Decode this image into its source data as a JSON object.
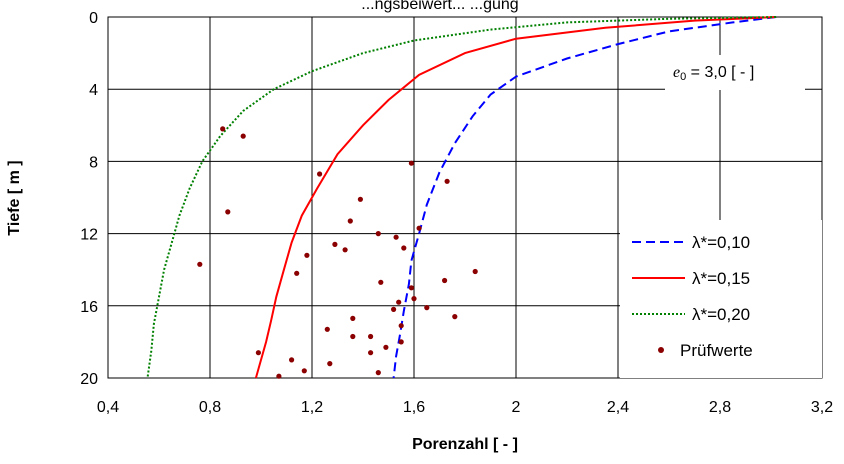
{
  "chart_data": {
    "type": "line",
    "title_partial": "...ngsbeiwert... ...gung",
    "xlabel": "Porenzahl  [ - ]",
    "ylabel": "Tiefe  [ m ]",
    "xlim": [
      0.4,
      3.2
    ],
    "ylim": [
      0,
      20
    ],
    "y_inverted": true,
    "grid": true,
    "x_ticks": [
      "0,4",
      "0,8",
      "1,2",
      "1,6",
      "2",
      "2,4",
      "2,8",
      "3,2"
    ],
    "y_ticks": [
      "0",
      "4",
      "8",
      "12",
      "16",
      "20"
    ],
    "annotation": {
      "e_symbol": "e",
      "e_subscript": "0",
      "text": " = 3,0 [ - ]"
    },
    "legend_position": "right",
    "series": [
      {
        "name": "λ*=0,10",
        "color": "#0000ff",
        "style": "dashed",
        "points": [
          [
            3.02,
            0
          ],
          [
            2.85,
            0.3
          ],
          [
            2.6,
            0.8
          ],
          [
            2.4,
            1.5
          ],
          [
            2.2,
            2.3
          ],
          [
            2.0,
            3.3
          ],
          [
            1.9,
            4.3
          ],
          [
            1.83,
            5.5
          ],
          [
            1.76,
            7.0
          ],
          [
            1.7,
            8.6
          ],
          [
            1.65,
            10.4
          ],
          [
            1.62,
            12.0
          ],
          [
            1.59,
            13.5
          ],
          [
            1.58,
            14.8
          ],
          [
            1.56,
            16.3
          ],
          [
            1.545,
            17.6
          ],
          [
            1.53,
            18.8
          ],
          [
            1.52,
            20.0
          ]
        ]
      },
      {
        "name": "λ*=0,15",
        "color": "#ff0000",
        "style": "solid",
        "points": [
          [
            3.02,
            0
          ],
          [
            2.7,
            0.2
          ],
          [
            2.35,
            0.6
          ],
          [
            2.0,
            1.2
          ],
          [
            1.8,
            2.0
          ],
          [
            1.62,
            3.2
          ],
          [
            1.5,
            4.6
          ],
          [
            1.4,
            6.0
          ],
          [
            1.3,
            7.6
          ],
          [
            1.22,
            9.5
          ],
          [
            1.16,
            11.0
          ],
          [
            1.12,
            12.5
          ],
          [
            1.09,
            14.0
          ],
          [
            1.06,
            15.5
          ],
          [
            1.04,
            16.8
          ],
          [
            1.02,
            18.0
          ],
          [
            1.0,
            19.0
          ],
          [
            0.98,
            20.0
          ]
        ]
      },
      {
        "name": "λ*=0,20",
        "color": "#008000",
        "style": "dotted",
        "points": [
          [
            3.02,
            0
          ],
          [
            2.6,
            0.1
          ],
          [
            2.2,
            0.3
          ],
          [
            1.9,
            0.7
          ],
          [
            1.6,
            1.3
          ],
          [
            1.4,
            2.0
          ],
          [
            1.2,
            3.0
          ],
          [
            1.05,
            4.0
          ],
          [
            0.93,
            5.2
          ],
          [
            0.84,
            6.6
          ],
          [
            0.77,
            8.0
          ],
          [
            0.72,
            9.5
          ],
          [
            0.68,
            11.0
          ],
          [
            0.65,
            12.5
          ],
          [
            0.62,
            14.0
          ],
          [
            0.6,
            15.5
          ],
          [
            0.58,
            17.0
          ],
          [
            0.57,
            18.5
          ],
          [
            0.555,
            20.0
          ]
        ]
      }
    ],
    "scatter": {
      "name": "Prüfwerte",
      "color": "#8b0000",
      "points": [
        [
          0.85,
          6.2
        ],
        [
          0.93,
          6.6
        ],
        [
          1.59,
          8.1
        ],
        [
          1.23,
          8.7
        ],
        [
          1.73,
          9.1
        ],
        [
          1.39,
          10.1
        ],
        [
          0.87,
          10.8
        ],
        [
          1.35,
          11.3
        ],
        [
          1.62,
          11.7
        ],
        [
          1.46,
          12.0
        ],
        [
          1.53,
          12.2
        ],
        [
          1.29,
          12.6
        ],
        [
          1.33,
          12.9
        ],
        [
          1.56,
          12.8
        ],
        [
          1.18,
          13.2
        ],
        [
          0.76,
          13.7
        ],
        [
          1.14,
          14.2
        ],
        [
          1.84,
          14.1
        ],
        [
          1.72,
          14.6
        ],
        [
          1.47,
          14.7
        ],
        [
          1.59,
          15.0
        ],
        [
          1.6,
          15.6
        ],
        [
          1.54,
          15.8
        ],
        [
          1.52,
          16.2
        ],
        [
          1.65,
          16.1
        ],
        [
          1.36,
          16.7
        ],
        [
          1.76,
          16.6
        ],
        [
          1.55,
          17.1
        ],
        [
          1.26,
          17.3
        ],
        [
          1.43,
          17.7
        ],
        [
          1.36,
          17.7
        ],
        [
          1.55,
          18.0
        ],
        [
          1.49,
          18.3
        ],
        [
          0.99,
          18.6
        ],
        [
          1.43,
          18.6
        ],
        [
          1.12,
          19.0
        ],
        [
          1.27,
          19.2
        ],
        [
          1.17,
          19.6
        ],
        [
          1.46,
          19.7
        ],
        [
          1.07,
          19.9
        ]
      ]
    }
  }
}
